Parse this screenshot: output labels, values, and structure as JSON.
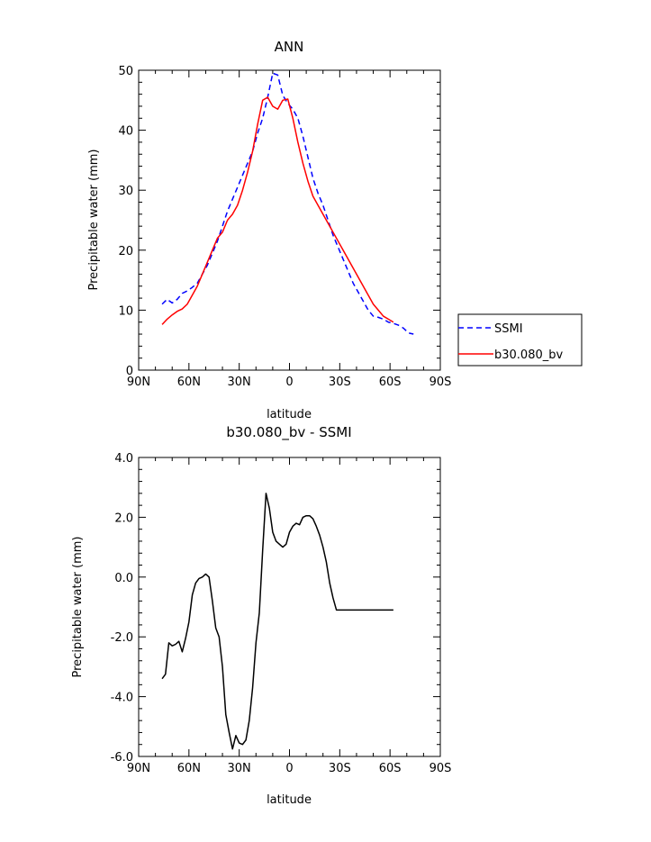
{
  "chart_data": [
    {
      "type": "line",
      "title": "ANN",
      "xlabel": "latitude",
      "ylabel": "Precipitable water (mm)",
      "xlim": [
        90,
        -90
      ],
      "ylim": [
        0,
        50
      ],
      "x_ticks": [
        90,
        60,
        30,
        0,
        -30,
        -60,
        -90
      ],
      "x_tick_labels": [
        "90N",
        "60N",
        "30N",
        "0",
        "30S",
        "60S",
        "90S"
      ],
      "y_ticks": [
        0,
        10,
        20,
        30,
        40,
        50
      ],
      "y_tick_labels": [
        "0",
        "10",
        "20",
        "30",
        "40",
        "50"
      ],
      "grid": false,
      "legend_position": "right",
      "series": [
        {
          "name": "SSMI",
          "color": "#0000ff",
          "dash": "dashed",
          "x": [
            76,
            73,
            70,
            67,
            64,
            61,
            58,
            55,
            52,
            49,
            46,
            43,
            40,
            37,
            34,
            31,
            28,
            25,
            22,
            19,
            16,
            13,
            10,
            7,
            4,
            1,
            -2,
            -5,
            -8,
            -11,
            -14,
            -17,
            -20,
            -23,
            -26,
            -29,
            -32,
            -35,
            -38,
            -41,
            -44,
            -47,
            -50,
            -53,
            -56,
            -59,
            -62,
            -65,
            -68,
            -71,
            -74
          ],
          "y": [
            11.0,
            11.8,
            11.2,
            11.8,
            12.8,
            13.2,
            13.8,
            14.5,
            16.0,
            17.5,
            19.5,
            21.5,
            24.0,
            26.5,
            28.5,
            30.5,
            32.5,
            34.5,
            36.5,
            39.5,
            42.0,
            45.5,
            49.5,
            49.2,
            45.8,
            44.5,
            43.5,
            42.0,
            39.0,
            35.5,
            32.0,
            29.5,
            27.5,
            25.0,
            22.5,
            20.5,
            18.5,
            16.5,
            14.5,
            13.0,
            11.5,
            10.0,
            9.0,
            8.8,
            8.5,
            8.0,
            7.8,
            7.5,
            7.0,
            6.2,
            6.0
          ]
        },
        {
          "name": "b30.080_bv",
          "color": "#ff0000",
          "dash": "solid",
          "x": [
            76,
            73,
            70,
            67,
            64,
            61,
            58,
            55,
            52,
            49,
            46,
            43,
            40,
            37,
            34,
            31,
            28,
            25,
            22,
            19,
            16,
            13,
            10,
            7,
            4,
            1,
            -2,
            -5,
            -8,
            -11,
            -14,
            -17,
            -20,
            -23,
            -26,
            -29,
            -32,
            -35,
            -38,
            -41,
            -44,
            -47,
            -50,
            -53,
            -56,
            -59,
            -62
          ],
          "y": [
            7.6,
            8.5,
            9.2,
            9.8,
            10.2,
            11.0,
            12.5,
            14.0,
            16.0,
            18.0,
            20.0,
            22.0,
            23.0,
            25.0,
            26.0,
            27.5,
            30.0,
            33.0,
            36.5,
            41.0,
            45.0,
            45.5,
            44.0,
            43.5,
            45.0,
            45.2,
            42.0,
            38.0,
            34.5,
            31.5,
            29.0,
            27.5,
            26.0,
            24.5,
            23.0,
            21.5,
            20.0,
            18.5,
            17.0,
            15.5,
            14.0,
            12.5,
            11.0,
            10.0,
            9.0,
            8.5,
            8.0
          ]
        }
      ]
    },
    {
      "type": "line",
      "title": "b30.080_bv - SSMI",
      "xlabel": "latitude",
      "ylabel": "Precipitable water (mm)",
      "xlim": [
        90,
        -90
      ],
      "ylim": [
        -6,
        4
      ],
      "x_ticks": [
        90,
        60,
        30,
        0,
        -30,
        -60,
        -90
      ],
      "x_tick_labels": [
        "90N",
        "60N",
        "30N",
        "0",
        "30S",
        "60S",
        "90S"
      ],
      "y_ticks": [
        -6,
        -4,
        -2,
        0,
        2,
        4
      ],
      "y_tick_labels": [
        "-6.0",
        "-4.0",
        "-2.0",
        "0.0",
        "2.0",
        "4.0"
      ],
      "grid": false,
      "series": [
        {
          "color": "#000000",
          "dash": "solid",
          "x": [
            76,
            74,
            72,
            70,
            68,
            66,
            64,
            62,
            60,
            58,
            56,
            54,
            52,
            50,
            48,
            46,
            44,
            42,
            40,
            38,
            36,
            34,
            32,
            30,
            28,
            26,
            24,
            22,
            20,
            18,
            16,
            14,
            12,
            10,
            8,
            6,
            4,
            2,
            0,
            -2,
            -4,
            -6,
            -8,
            -10,
            -12,
            -14,
            -16,
            -18,
            -20,
            -22,
            -24,
            -26,
            -28,
            -30,
            -32,
            -34,
            -36,
            -38,
            -40,
            -42,
            -44,
            -46,
            -48,
            -50,
            -52,
            -54,
            -56,
            -58,
            -60,
            -62
          ],
          "y": [
            -3.4,
            -3.25,
            -2.2,
            -2.3,
            -2.25,
            -2.15,
            -2.5,
            -2.05,
            -1.5,
            -0.6,
            -0.2,
            -0.05,
            0.0,
            0.1,
            0.0,
            -0.8,
            -1.7,
            -2.0,
            -3.0,
            -4.6,
            -5.2,
            -5.75,
            -5.3,
            -5.55,
            -5.6,
            -5.45,
            -4.8,
            -3.7,
            -2.2,
            -1.2,
            0.9,
            2.8,
            2.3,
            1.5,
            1.2,
            1.1,
            1.0,
            1.1,
            1.5,
            1.7,
            1.8,
            1.75,
            2.0,
            2.05,
            2.05,
            1.95,
            1.7,
            1.4,
            1.0,
            0.5,
            -0.2,
            -0.7,
            -1.1,
            -1.1,
            -1.1,
            -1.1,
            -1.1,
            -1.1,
            -1.1,
            -1.1,
            -1.1,
            -1.1,
            -1.1,
            -1.1,
            -1.1,
            -1.1,
            -1.1,
            -1.1,
            -1.1,
            -1.1
          ]
        }
      ]
    }
  ]
}
